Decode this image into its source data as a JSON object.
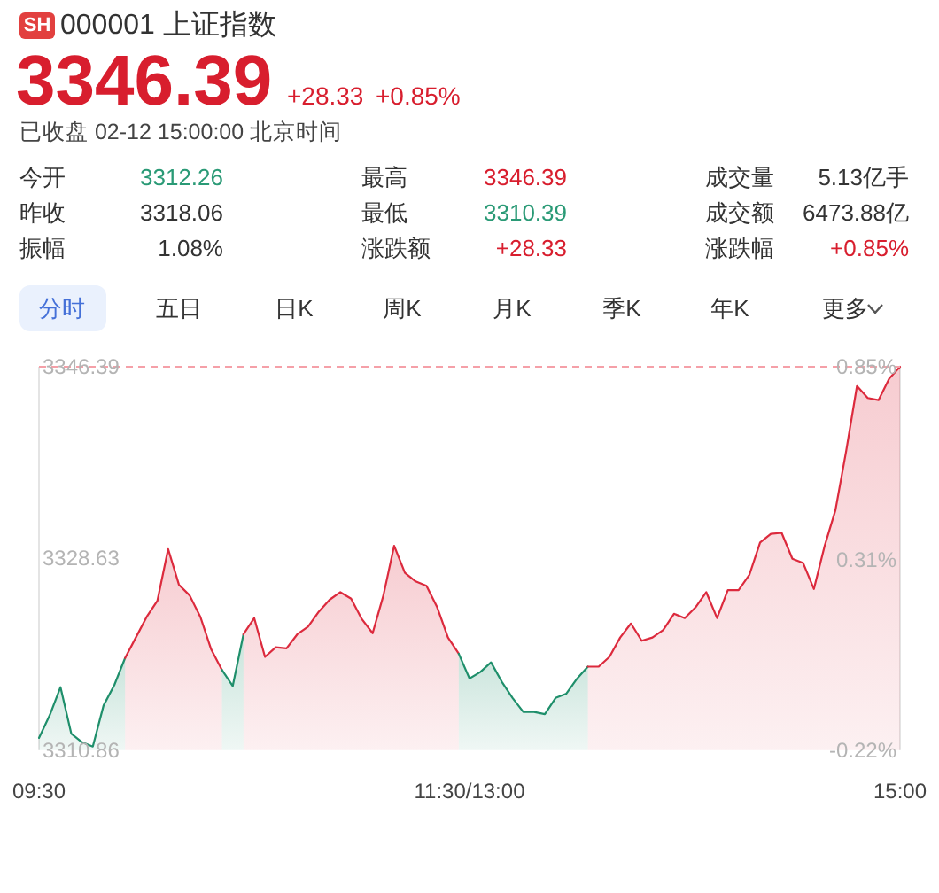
{
  "chart_data": {
    "type": "area",
    "title": "000001 上证指数",
    "categories": [
      "09:30",
      null,
      null,
      null,
      null,
      null,
      null,
      null,
      null,
      null,
      null,
      null,
      null,
      null,
      null,
      null,
      null,
      null,
      null,
      null,
      null,
      null,
      null,
      null,
      null,
      null,
      null,
      null,
      null,
      null,
      null,
      null,
      null,
      null,
      null,
      null,
      null,
      null,
      null,
      null,
      "11:30/13:00",
      null,
      null,
      null,
      null,
      null,
      null,
      null,
      null,
      null,
      null,
      null,
      null,
      null,
      null,
      null,
      null,
      null,
      null,
      null,
      null,
      null,
      null,
      null,
      null,
      null,
      null,
      null,
      null,
      null,
      null,
      null,
      null,
      null,
      null,
      null,
      null,
      null,
      null,
      null,
      "15:00"
    ],
    "series": [
      {
        "color": "#1f8f6b",
        "values": [
          3312.0,
          3314.1,
          3316.7,
          3312.4,
          3311.6,
          3311.2,
          3315.0,
          3316.9,
          3319.4,
          null,
          null,
          null,
          null,
          null,
          null,
          null,
          null,
          null,
          null,
          null,
          null,
          null,
          null,
          null,
          null,
          null,
          null,
          null,
          null,
          null,
          null,
          null,
          null,
          null,
          null,
          null,
          null,
          null,
          null,
          null,
          null,
          null,
          null,
          null,
          null,
          null,
          null,
          null,
          null,
          null,
          null,
          null,
          null,
          null,
          null,
          null,
          null,
          null,
          null,
          null,
          null,
          null,
          null,
          null,
          null,
          null,
          null,
          null,
          null,
          null,
          null,
          null,
          null,
          null,
          null,
          null,
          null,
          null,
          null,
          null,
          null
        ]
      },
      {
        "color": "#dc2a3d",
        "values": [
          null,
          null,
          null,
          null,
          null,
          null,
          null,
          null,
          3319.4,
          3321.3,
          3323.2,
          3324.7,
          3329.5,
          3326.2,
          3325.2,
          3323.2,
          3320.2,
          3318.3,
          null,
          null,
          null,
          null,
          null,
          null,
          null,
          null,
          null,
          null,
          null,
          null,
          null,
          null,
          null,
          null,
          null,
          null,
          null,
          null,
          null,
          null,
          null,
          null,
          null,
          null,
          null,
          null,
          null,
          null,
          null,
          null,
          null,
          null,
          null,
          null,
          null,
          null,
          null,
          null,
          null,
          null,
          null,
          null,
          null,
          null,
          null,
          null,
          null,
          null,
          null,
          null,
          null,
          null,
          null,
          null,
          null,
          null,
          null,
          null,
          null,
          null,
          null
        ]
      },
      {
        "color": "#1f8f6b",
        "values": [
          null,
          null,
          null,
          null,
          null,
          null,
          null,
          null,
          null,
          null,
          null,
          null,
          null,
          null,
          null,
          null,
          null,
          3318.3,
          3316.8,
          3321.6,
          null,
          null,
          null,
          null,
          null,
          null,
          null,
          null,
          null,
          null,
          null,
          null,
          null,
          null,
          null,
          null,
          null,
          null,
          null,
          null,
          null,
          null,
          null,
          null,
          null,
          null,
          null,
          null,
          null,
          null,
          null,
          null,
          null,
          null,
          null,
          null,
          null,
          null,
          null,
          null,
          null,
          null,
          null,
          null,
          null,
          null,
          null,
          null,
          null,
          null,
          null,
          null,
          null,
          null,
          null,
          null,
          null,
          null,
          null,
          null,
          null
        ]
      },
      {
        "color": "#dc2a3d",
        "values": [
          null,
          null,
          null,
          null,
          null,
          null,
          null,
          null,
          null,
          null,
          null,
          null,
          null,
          null,
          null,
          null,
          null,
          null,
          null,
          3321.6,
          3323.1,
          3319.5,
          3320.4,
          3320.3,
          3321.6,
          3322.3,
          3323.7,
          3324.8,
          3325.5,
          3324.9,
          3323.0,
          3321.7,
          3325.2,
          3329.8,
          3327.3,
          3326.5,
          3326.1,
          3324.1,
          3321.3,
          3319.8,
          null,
          null,
          null,
          null,
          null,
          null,
          null,
          null,
          null,
          null,
          null,
          null,
          null,
          null,
          null,
          null,
          null,
          null,
          null,
          null,
          null,
          null,
          null,
          null,
          null,
          null,
          null,
          null,
          null,
          null,
          null,
          null,
          null,
          null,
          null,
          null,
          null,
          null,
          null,
          null,
          null
        ]
      },
      {
        "color": "#1f8f6b",
        "values": [
          null,
          null,
          null,
          null,
          null,
          null,
          null,
          null,
          null,
          null,
          null,
          null,
          null,
          null,
          null,
          null,
          null,
          null,
          null,
          null,
          null,
          null,
          null,
          null,
          null,
          null,
          null,
          null,
          null,
          null,
          null,
          null,
          null,
          null,
          null,
          null,
          null,
          null,
          null,
          3319.8,
          3317.5,
          3318.1,
          3319.0,
          3317.2,
          3315.7,
          3314.4,
          3314.4,
          3314.2,
          3315.7,
          3316.1,
          3317.5,
          3318.6,
          null,
          null,
          null,
          null,
          null,
          null,
          null,
          null,
          null,
          null,
          null,
          null,
          null,
          null,
          null,
          null,
          null,
          null,
          null,
          null,
          null,
          null,
          null,
          null,
          null,
          null,
          null,
          null,
          null
        ]
      },
      {
        "color": "#dc2a3d",
        "values": [
          null,
          null,
          null,
          null,
          null,
          null,
          null,
          null,
          null,
          null,
          null,
          null,
          null,
          null,
          null,
          null,
          null,
          null,
          null,
          null,
          null,
          null,
          null,
          null,
          null,
          null,
          null,
          null,
          null,
          null,
          null,
          null,
          null,
          null,
          null,
          null,
          null,
          null,
          null,
          null,
          null,
          null,
          null,
          null,
          null,
          null,
          null,
          null,
          null,
          null,
          null,
          3318.6,
          3318.6,
          3319.5,
          3321.3,
          3322.6,
          3321.0,
          3321.3,
          3322.0,
          3323.5,
          3323.1,
          3324.1,
          3325.5,
          3323.1,
          3325.7,
          3325.7,
          3327.1,
          3330.1,
          3330.9,
          3331.0,
          3328.6,
          3328.2,
          3325.8,
          3329.8,
          3333.1,
          3338.6,
          3344.6,
          3343.5,
          3343.3,
          3345.3,
          3346.39
        ]
      }
    ],
    "ylim": [
      3310.86,
      3346.39
    ],
    "yticks": [
      3310.86,
      3328.63,
      3346.39
    ],
    "y2lim": [
      -0.22,
      0.85
    ],
    "y2ticks": [
      {
        "value": -0.22,
        "label": "-0.22%"
      },
      {
        "value": 0.31,
        "label": "0.31%"
      },
      {
        "value": 0.85,
        "label": "0.85%"
      }
    ],
    "ref_lines": [
      {
        "axis": "y",
        "value": 3346.39,
        "color": "#f5a0a8",
        "line_style": "dashed"
      }
    ],
    "annotations": [
      "SH",
      "3346.39",
      "+28.33",
      "+0.85%",
      "已收盘 02-12 15:00:00 北京时间",
      "今开",
      "3312.26",
      "最高",
      "3346.39",
      "成交量",
      "5.13亿手",
      "昨收",
      "3318.06",
      "最低",
      "3310.39",
      "成交额",
      "6473.88亿",
      "振幅",
      "1.08%",
      "涨跌额",
      "+28.33",
      "涨跌幅",
      "+0.85%",
      "分时",
      "五日",
      "日K",
      "周K",
      "月K",
      "季K",
      "年K",
      "更多"
    ]
  }
}
